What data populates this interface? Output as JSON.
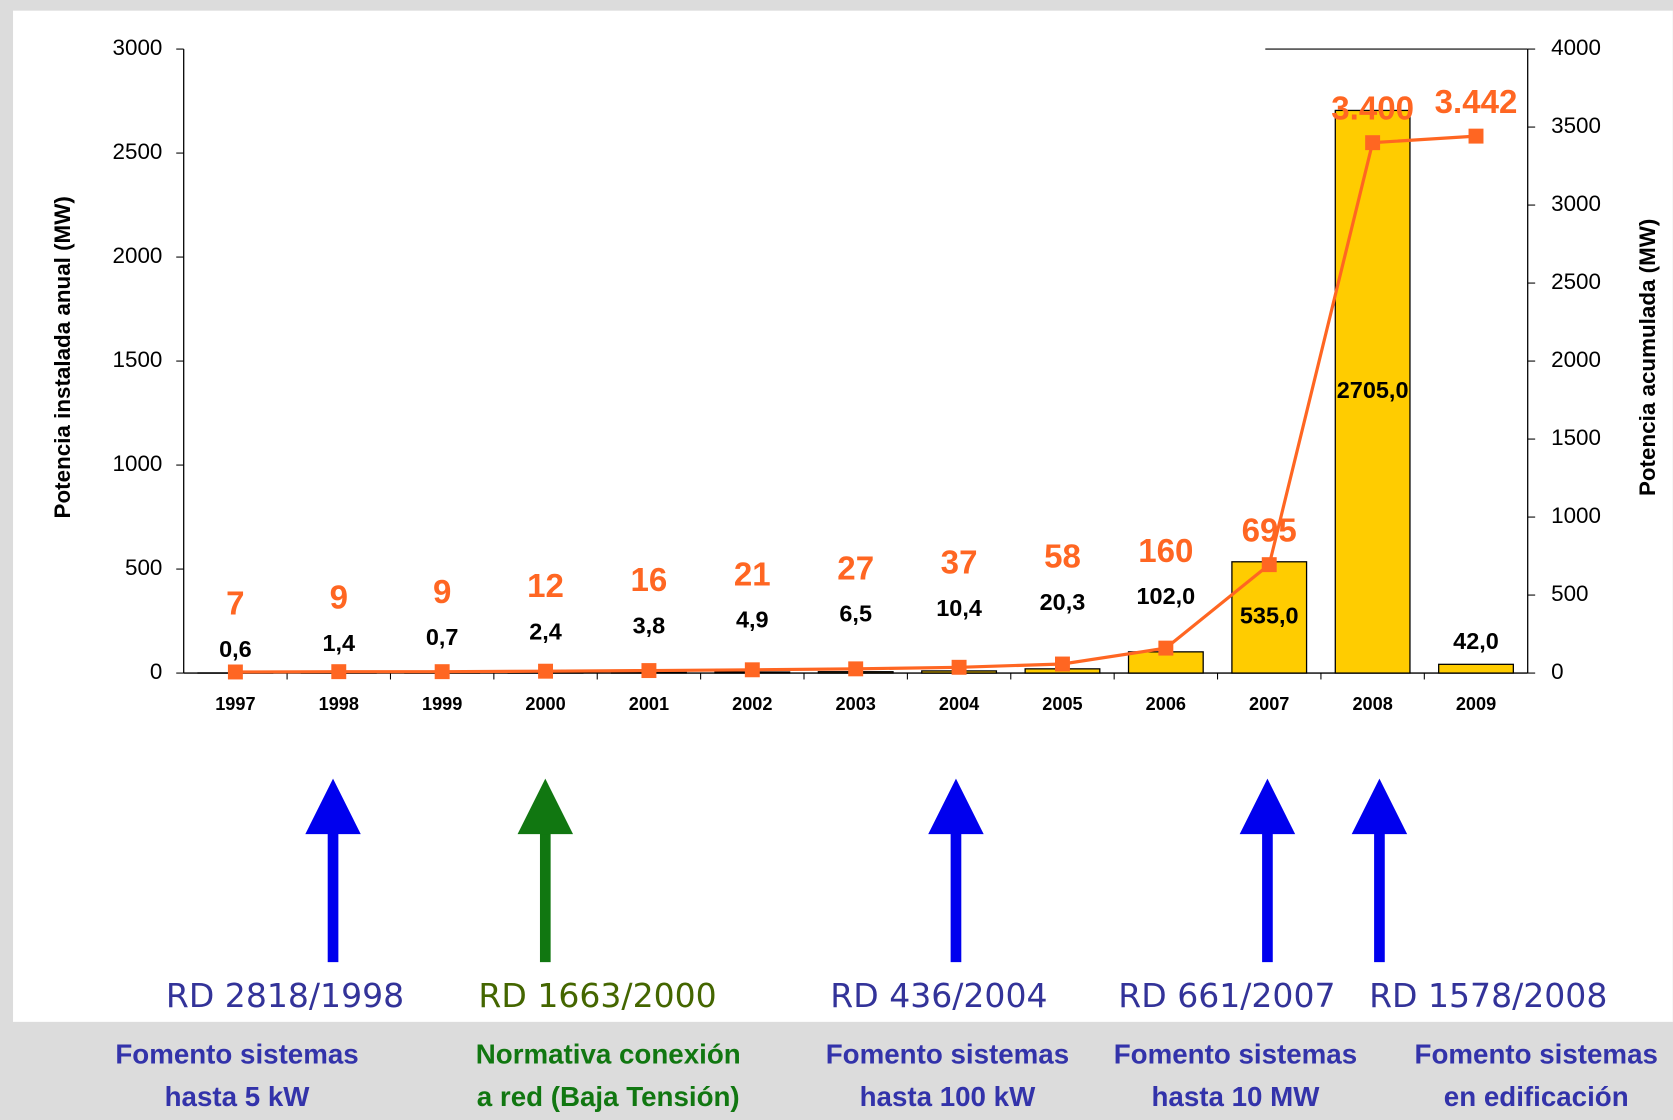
{
  "chart_data": {
    "type": "bar",
    "categories": [
      "1997",
      "1998",
      "1999",
      "2000",
      "2001",
      "2002",
      "2003",
      "2004",
      "2005",
      "2006",
      "2007",
      "2008",
      "2009"
    ],
    "series": [
      {
        "type": "bar",
        "color": "#ffcc00",
        "values": [
          0.6,
          1.4,
          0.7,
          2.4,
          3.8,
          4.9,
          6.5,
          10.4,
          20.3,
          102.0,
          535.0,
          2705.0,
          42.0
        ],
        "value_labels": [
          "0,6",
          "1,4",
          "0,7",
          "2,4",
          "3,8",
          "4,9",
          "6,5",
          "10,4",
          "20,3",
          "102,0",
          "535,0",
          "2705,0",
          "42,0"
        ]
      },
      {
        "type": "line",
        "axis": "y2",
        "color": "#ff6622",
        "values": [
          7,
          9,
          9,
          12,
          16,
          21,
          27,
          37,
          58,
          160,
          695,
          3400,
          3442
        ],
        "value_labels": [
          "7",
          "9",
          "9",
          "12",
          "16",
          "21",
          "27",
          "37",
          "58",
          "160",
          "695",
          "3.400",
          "3.442"
        ]
      }
    ],
    "ylabel": "Potencia instalada anual (MW)",
    "y2label": "Potencia acumulada (MW)",
    "ylim": [
      0,
      3000
    ],
    "yticks": [
      0,
      500,
      1000,
      1500,
      2000,
      2500,
      3000
    ],
    "y2lim": [
      0,
      4000
    ],
    "y2ticks": [
      0,
      500,
      1000,
      1500,
      2000,
      2500,
      3000,
      3500,
      4000
    ],
    "annotations": [
      {
        "label": "RD 2818/1998",
        "description": [
          "Fomento sistemas",
          "hasta 5 kW"
        ],
        "color": "#0000ee"
      },
      {
        "label": "RD 1663/2000",
        "description": [
          "Normativa conexión",
          "a red (Baja Tensión)"
        ],
        "color": "#117711"
      },
      {
        "label": "RD 436/2004",
        "description": [
          "Fomento sistemas",
          "hasta 100 kW"
        ],
        "color": "#0000ee"
      },
      {
        "label": "RD 661/2007",
        "description": [
          "Fomento sistemas",
          "hasta 10 MW"
        ],
        "color": "#0000ee"
      },
      {
        "label": "RD 1578/2008",
        "description": [
          "Fomento sistemas",
          "en edificación"
        ],
        "color": "#0000ee"
      }
    ]
  }
}
